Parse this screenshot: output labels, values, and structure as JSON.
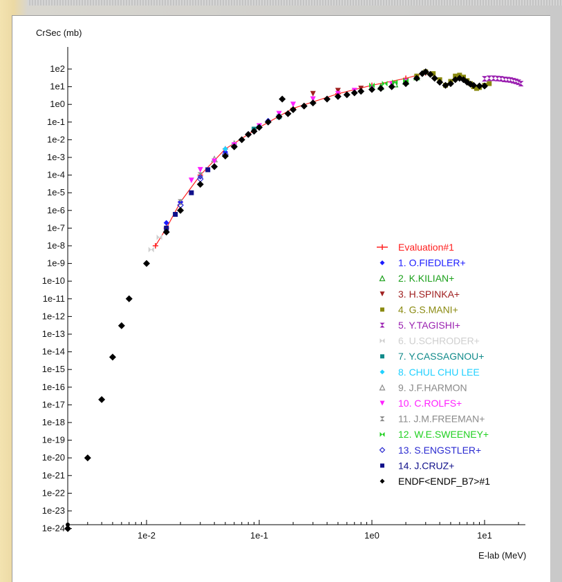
{
  "chart_data": {
    "type": "scatter",
    "ylabel": "CrSec (mb)",
    "xlabel": "E-lab (MeV)",
    "x_scale": "log",
    "y_scale": "log",
    "xlim": [
      0.002,
      22
    ],
    "ylim": [
      1e-25,
      100
    ],
    "x_ticks": [
      {
        "value": 0.01,
        "label": "1e-2"
      },
      {
        "value": 0.1,
        "label": "1e-1"
      },
      {
        "value": 1,
        "label": "1e0"
      },
      {
        "value": 10,
        "label": "1e1"
      }
    ],
    "y_ticks": [
      {
        "exp": 2,
        "label": "1e2"
      },
      {
        "exp": 1,
        "label": "1e1"
      },
      {
        "exp": 0,
        "label": "1e0"
      },
      {
        "exp": -1,
        "label": "1e-1"
      },
      {
        "exp": -2,
        "label": "1e-2"
      },
      {
        "exp": -3,
        "label": "1e-3"
      },
      {
        "exp": -4,
        "label": "1e-4"
      },
      {
        "exp": -5,
        "label": "1e-5"
      },
      {
        "exp": -6,
        "label": "1e-6"
      },
      {
        "exp": -7,
        "label": "1e-7"
      },
      {
        "exp": -8,
        "label": "1e-8"
      },
      {
        "exp": -9,
        "label": "1e-9"
      },
      {
        "exp": -10,
        "label": "1e-10"
      },
      {
        "exp": -11,
        "label": "1e-11"
      },
      {
        "exp": -12,
        "label": "1e-12"
      },
      {
        "exp": -13,
        "label": "1e-13"
      },
      {
        "exp": -14,
        "label": "1e-14"
      },
      {
        "exp": -15,
        "label": "1e-15"
      },
      {
        "exp": -16,
        "label": "1e-16"
      },
      {
        "exp": -17,
        "label": "1e-17"
      },
      {
        "exp": -18,
        "label": "1e-18"
      },
      {
        "exp": -19,
        "label": "1e-19"
      },
      {
        "exp": -20,
        "label": "1e-20"
      },
      {
        "exp": -21,
        "label": "1e-21"
      },
      {
        "exp": -22,
        "label": "1e-22"
      },
      {
        "exp": -23,
        "label": "1e-23"
      },
      {
        "exp": -24,
        "label": "1e-24"
      }
    ],
    "legend_position": "right",
    "series": [
      {
        "name": "Evaluation#1",
        "color": "#ff2020",
        "marker": "plus-line",
        "points": [
          [
            0.012,
            1e-08
          ],
          [
            0.015,
            1e-07
          ],
          [
            0.02,
            3e-06
          ],
          [
            0.03,
            0.0001
          ],
          [
            0.05,
            0.003
          ],
          [
            0.1,
            0.05
          ],
          [
            0.2,
            0.6
          ],
          [
            0.5,
            4
          ],
          [
            1,
            12
          ],
          [
            2,
            30
          ],
          [
            3,
            60
          ]
        ]
      },
      {
        "name": "1. O.FIEDLER+",
        "color": "#1a1aff",
        "marker": "diamond",
        "points": [
          [
            0.015,
            2e-07
          ],
          [
            0.02,
            3e-06
          ],
          [
            0.03,
            8e-05
          ],
          [
            0.05,
            0.002
          ],
          [
            0.08,
            0.02
          ],
          [
            0.12,
            0.12
          ]
        ]
      },
      {
        "name": "2. K.KILIAN+",
        "color": "#1aa01a",
        "marker": "triangle-up",
        "points": [
          [
            1.2,
            10
          ],
          [
            1.6,
            14
          ],
          [
            2,
            20
          ],
          [
            2.5,
            35
          ]
        ]
      },
      {
        "name": "3. H.SPINKA+",
        "color": "#a02020",
        "marker": "triangle-down",
        "points": [
          [
            0.3,
            4
          ],
          [
            0.5,
            6
          ],
          [
            0.8,
            8
          ]
        ]
      },
      {
        "name": "4. G.S.MANI+",
        "color": "#8a8a10",
        "marker": "square",
        "points": [
          [
            2.5,
            40
          ],
          [
            3,
            70
          ],
          [
            3.5,
            55
          ],
          [
            4,
            25
          ],
          [
            4.5,
            12
          ],
          [
            5,
            20
          ],
          [
            5.5,
            40
          ],
          [
            6,
            45
          ],
          [
            6.5,
            35
          ],
          [
            7,
            22
          ],
          [
            7.5,
            15
          ],
          [
            8,
            10
          ],
          [
            8.5,
            8
          ],
          [
            9,
            9
          ],
          [
            10,
            12
          ],
          [
            11,
            15
          ]
        ]
      },
      {
        "name": "5. Y.TAGISHI+",
        "color": "#9a20b0",
        "marker": "hourglass",
        "points": [
          [
            10,
            28
          ],
          [
            11,
            30
          ],
          [
            12,
            30
          ],
          [
            13,
            29
          ],
          [
            14,
            28
          ],
          [
            15,
            26
          ],
          [
            16,
            25
          ],
          [
            17,
            24
          ],
          [
            18,
            22
          ],
          [
            19,
            20
          ],
          [
            20,
            18
          ],
          [
            21,
            15
          ]
        ]
      },
      {
        "name": "6. U.SCHRODER+",
        "color": "#cfcfcf",
        "marker": "bowtie",
        "points": [
          [
            0.011,
            6e-09
          ],
          [
            0.013,
            3e-08
          ]
        ]
      },
      {
        "name": "7. Y.CASSAGNOU+",
        "color": "#108a8a",
        "marker": "square",
        "points": [
          [
            0.06,
            0.005
          ],
          [
            0.09,
            0.04
          ],
          [
            0.15,
            0.2
          ]
        ]
      },
      {
        "name": "8. CHUL CHU LEE",
        "color": "#20d0ff",
        "marker": "diamond",
        "points": [
          [
            0.05,
            0.003
          ],
          [
            0.08,
            0.02
          ],
          [
            0.1,
            0.06
          ]
        ]
      },
      {
        "name": "9. J.F.HARMON",
        "color": "#8a8a8a",
        "marker": "triangle-up",
        "points": [
          [
            0.04,
            0.0008
          ],
          [
            0.06,
            0.006
          ]
        ]
      },
      {
        "name": "10. C.ROLFS+",
        "color": "#ff20ff",
        "marker": "triangle-down",
        "points": [
          [
            0.025,
            5e-05
          ],
          [
            0.03,
            0.0002
          ],
          [
            0.04,
            0.0006
          ],
          [
            0.06,
            0.005
          ],
          [
            0.1,
            0.06
          ],
          [
            0.15,
            0.3
          ],
          [
            0.2,
            1
          ],
          [
            0.3,
            2
          ],
          [
            0.5,
            4
          ],
          [
            0.7,
            6
          ],
          [
            1,
            9
          ],
          [
            1.5,
            14
          ],
          [
            2,
            20
          ]
        ]
      },
      {
        "name": "11. J.M.FREEMAN+",
        "color": "#8a8a8a",
        "marker": "hourglass",
        "points": [
          [
            0.02,
            3e-06
          ],
          [
            0.03,
            0.0001
          ]
        ]
      },
      {
        "name": "12. W.E.SWEENEY+",
        "color": "#20d020",
        "marker": "bowtie",
        "points": [
          [
            1,
            12
          ],
          [
            1.3,
            15
          ],
          [
            1.6,
            18
          ],
          [
            2,
            22
          ]
        ]
      },
      {
        "name": "13. S.ENGSTLER+",
        "color": "#2a2ad0",
        "marker": "diamond-open",
        "points": [
          [
            0.02,
            2e-06
          ],
          [
            0.03,
            6e-05
          ],
          [
            0.05,
            0.0015
          ],
          [
            0.08,
            0.02
          ]
        ]
      },
      {
        "name": "14. J.CRUZ+",
        "color": "#10108a",
        "marker": "square",
        "points": [
          [
            0.015,
            1e-07
          ],
          [
            0.018,
            6e-07
          ],
          [
            0.025,
            1e-05
          ],
          [
            0.035,
            0.0002
          ]
        ]
      },
      {
        "name": "ENDF<ENDF_B7>#1",
        "color": "#000000",
        "marker": "diamond",
        "points": [
          [
            0.002,
            1e-24
          ],
          [
            0.003,
            1e-20
          ],
          [
            0.004,
            2e-17
          ],
          [
            0.005,
            5e-15
          ],
          [
            0.006,
            3e-13
          ],
          [
            0.007,
            1e-11
          ],
          [
            0.01,
            1e-09
          ],
          [
            0.015,
            6e-08
          ],
          [
            0.02,
            1e-06
          ],
          [
            0.03,
            3e-05
          ],
          [
            0.04,
            0.0003
          ],
          [
            0.05,
            0.0012
          ],
          [
            0.06,
            0.004
          ],
          [
            0.07,
            0.01
          ],
          [
            0.08,
            0.02
          ],
          [
            0.09,
            0.03
          ],
          [
            0.1,
            0.05
          ],
          [
            0.12,
            0.1
          ],
          [
            0.15,
            0.2
          ],
          [
            0.16,
            2
          ],
          [
            0.18,
            0.3
          ],
          [
            0.2,
            0.5
          ],
          [
            0.25,
            0.8
          ],
          [
            0.3,
            1.2
          ],
          [
            0.4,
            2
          ],
          [
            0.5,
            2.8
          ],
          [
            0.6,
            3.5
          ],
          [
            0.7,
            4.5
          ],
          [
            0.8,
            5.5
          ],
          [
            1,
            7
          ],
          [
            1.2,
            8
          ],
          [
            1.5,
            10
          ],
          [
            2,
            15
          ],
          [
            2.5,
            30
          ],
          [
            2.8,
            55
          ],
          [
            3,
            70
          ],
          [
            3.3,
            50
          ],
          [
            3.6,
            30
          ],
          [
            4,
            18
          ],
          [
            4.5,
            12
          ],
          [
            5,
            15
          ],
          [
            5.5,
            25
          ],
          [
            6,
            30
          ],
          [
            6.5,
            25
          ],
          [
            7,
            18
          ],
          [
            7.5,
            14
          ],
          [
            8,
            12
          ],
          [
            9,
            11
          ],
          [
            10,
            11
          ]
        ]
      }
    ]
  }
}
